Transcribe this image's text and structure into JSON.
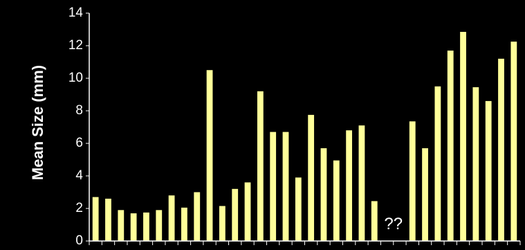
{
  "chart_data": {
    "type": "bar",
    "title": "",
    "xlabel": "",
    "ylabel": "Mean Size (mm)",
    "ylim": [
      0,
      14
    ],
    "yticks": [
      0,
      2,
      4,
      6,
      8,
      10,
      12,
      14
    ],
    "grid": false,
    "legend": "none",
    "bar_color": "#FFFF99",
    "background": "#000000",
    "text_color": "#FFFFFF",
    "values": [
      2.7,
      2.6,
      1.9,
      1.7,
      1.75,
      1.9,
      2.8,
      2.05,
      3.0,
      10.5,
      2.15,
      3.2,
      3.6,
      9.2,
      6.7,
      6.7,
      3.9,
      7.75,
      5.7,
      4.95,
      6.8,
      7.1,
      2.45,
      null,
      null,
      7.35,
      5.7,
      9.5,
      11.7,
      12.85,
      9.45,
      8.6,
      11.2,
      12.25
    ],
    "annotations": [
      {
        "text": "??",
        "category_index": 23.5,
        "y": 1.0
      }
    ]
  }
}
